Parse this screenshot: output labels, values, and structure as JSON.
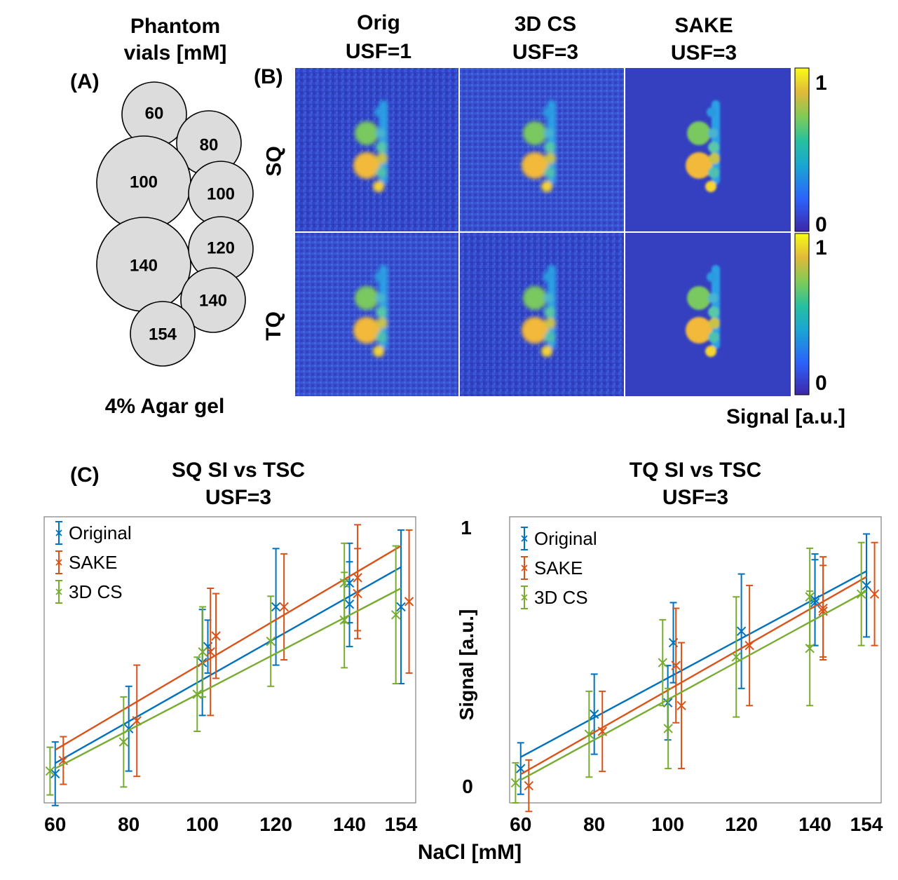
{
  "panel_a": {
    "letter": "(A)",
    "title_line1": "Phantom",
    "title_line2": "vials [mM]",
    "footer": "4% Agar gel",
    "vials": [
      "60",
      "80",
      "100",
      "100",
      "120",
      "140",
      "140",
      "154"
    ]
  },
  "panel_b": {
    "letter": "(B)",
    "columns": [
      {
        "line1": "Orig",
        "line2": "USF=1"
      },
      {
        "line1": "3D CS",
        "line2": "USF=3"
      },
      {
        "line1": "SAKE",
        "line2": "USF=3"
      }
    ],
    "rows": [
      "SQ",
      "TQ"
    ],
    "colorbar_max": "1",
    "colorbar_min": "0",
    "colorbar_label": "Signal [a.u.]"
  },
  "panel_c": {
    "letter": "(C)",
    "xlabel": "NaCl [mM]",
    "ylabel": "Signal [a.u.]",
    "y_tick_top": "1",
    "y_tick_bottom": "0"
  },
  "colors": {
    "Original": "#0072BD",
    "SAKE": "#D95319",
    "3D CS": "#77AC30"
  },
  "chart_data": [
    {
      "type": "scatter",
      "title_line1": "SQ SI vs TSC",
      "title_line2": "USF=3",
      "x_ticks": [
        60,
        80,
        100,
        120,
        140,
        154
      ],
      "xlim": [
        57,
        158
      ],
      "ylim": [
        -0.05,
        1.03
      ],
      "series": [
        {
          "name": "Original",
          "points": [
            [
              60,
              0.06,
              0.12
            ],
            [
              80,
              0.23,
              0.16
            ],
            [
              100,
              0.48,
              0.2
            ],
            [
              100,
              0.54,
              0.1
            ],
            [
              120,
              0.69,
              0.22
            ],
            [
              140,
              0.78,
              0.15
            ],
            [
              140,
              0.7,
              0.16
            ],
            [
              154,
              0.69,
              0.29
            ]
          ],
          "fit": [
            [
              60,
              0.1
            ],
            [
              154,
              0.84
            ]
          ]
        },
        {
          "name": "SAKE",
          "points": [
            [
              60,
              0.11,
              0.09
            ],
            [
              80,
              0.26,
              0.21
            ],
            [
              100,
              0.52,
              0.24
            ],
            [
              100,
              0.58,
              0.16
            ],
            [
              120,
              0.69,
              0.2
            ],
            [
              140,
              0.8,
              0.2
            ],
            [
              140,
              0.74,
              0.17
            ],
            [
              154,
              0.71,
              0.27
            ]
          ],
          "fit": [
            [
              60,
              0.15
            ],
            [
              154,
              0.92
            ]
          ]
        },
        {
          "name": "3D CS",
          "points": [
            [
              60,
              0.07,
              0.09
            ],
            [
              80,
              0.18,
              0.17
            ],
            [
              100,
              0.36,
              0.14
            ],
            [
              100,
              0.52,
              0.17
            ],
            [
              120,
              0.56,
              0.17
            ],
            [
              140,
              0.64,
              0.18
            ],
            [
              140,
              0.78,
              0.15
            ],
            [
              154,
              0.66,
              0.26
            ]
          ],
          "fit": [
            [
              60,
              0.08
            ],
            [
              154,
              0.76
            ]
          ]
        }
      ]
    },
    {
      "type": "scatter",
      "title_line1": "TQ SI vs TSC",
      "title_line2": "USF=3",
      "x_ticks": [
        60,
        80,
        100,
        120,
        140,
        154
      ],
      "xlim": [
        57,
        158
      ],
      "ylim": [
        0,
        1
      ],
      "series": [
        {
          "name": "Original",
          "points": [
            [
              60,
              0.12,
              0.09
            ],
            [
              80,
              0.31,
              0.14
            ],
            [
              100,
              0.35,
              0.13
            ],
            [
              100,
              0.56,
              0.14
            ],
            [
              120,
              0.6,
              0.2
            ],
            [
              140,
              0.71,
              0.16
            ],
            [
              140,
              0.7,
              0.15
            ],
            [
              154,
              0.76,
              0.18
            ]
          ],
          "fit": [
            [
              60,
              0.16
            ],
            [
              154,
              0.81
            ]
          ]
        },
        {
          "name": "SAKE",
          "points": [
            [
              60,
              0.06,
              0.09
            ],
            [
              80,
              0.25,
              0.14
            ],
            [
              100,
              0.48,
              0.2
            ],
            [
              100,
              0.34,
              0.22
            ],
            [
              120,
              0.55,
              0.21
            ],
            [
              140,
              0.68,
              0.18
            ],
            [
              140,
              0.67,
              0.16
            ],
            [
              154,
              0.73,
              0.18
            ]
          ],
          "fit": [
            [
              60,
              0.1
            ],
            [
              154,
              0.79
            ]
          ]
        },
        {
          "name": "3D CS",
          "points": [
            [
              60,
              0.07,
              0.07
            ],
            [
              80,
              0.24,
              0.15
            ],
            [
              100,
              0.49,
              0.15
            ],
            [
              100,
              0.26,
              0.14
            ],
            [
              120,
              0.51,
              0.21
            ],
            [
              140,
              0.54,
              0.2
            ],
            [
              140,
              0.72,
              0.17
            ],
            [
              154,
              0.73,
              0.18
            ]
          ],
          "fit": [
            [
              60,
              0.08
            ],
            [
              154,
              0.74
            ]
          ]
        }
      ]
    }
  ]
}
